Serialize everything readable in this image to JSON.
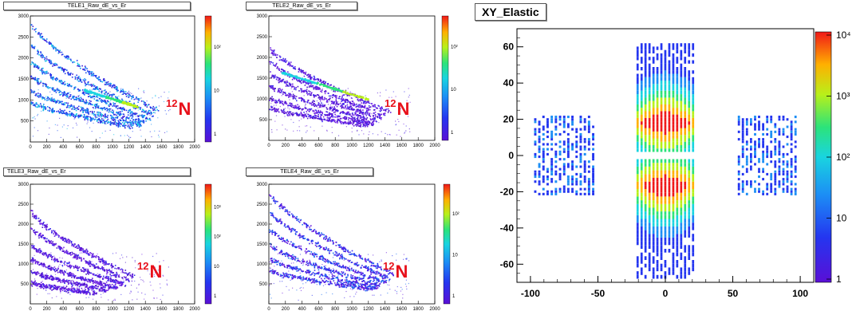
{
  "chart_data": [
    {
      "type": "heatmap",
      "title": "TELE1_Raw_dE_vs_Er",
      "xlim": [
        0,
        2000
      ],
      "ylim": [
        0,
        3000
      ],
      "xticks": [
        "0",
        "200",
        "400",
        "600",
        "800",
        "1000",
        "1200",
        "1400",
        "1600",
        "1800",
        "2000"
      ],
      "yticks": [
        "500",
        "1000",
        "1500",
        "2000",
        "2500",
        "3000"
      ],
      "zscale": "log",
      "zticks": [
        "1",
        "10",
        "10²"
      ],
      "annotation": {
        "mass": "12",
        "symbol": "N"
      },
      "bands": [
        {
          "x0": 0,
          "y0": 2850,
          "x1": 1550,
          "y1": 750
        },
        {
          "x0": 0,
          "y0": 2350,
          "x1": 1500,
          "y1": 650
        },
        {
          "x0": 0,
          "y0": 1950,
          "x1": 1450,
          "y1": 550
        },
        {
          "x0": 0,
          "y0": 1600,
          "x1": 1400,
          "y1": 480
        },
        {
          "x0": 0,
          "y0": 1250,
          "x1": 1350,
          "y1": 420
        },
        {
          "x0": 0,
          "y0": 950,
          "x1": 1250,
          "y1": 380
        }
      ],
      "ridge": {
        "x0": 650,
        "y0": 1250,
        "x1": 1300,
        "y1": 850
      }
    },
    {
      "type": "heatmap",
      "title": "TELE2_Raw_dE_vs_Er",
      "xlim": [
        0,
        2000
      ],
      "ylim": [
        0,
        3000
      ],
      "xticks": [
        "0",
        "200",
        "400",
        "600",
        "800",
        "1000",
        "1200",
        "1400",
        "1600",
        "1800",
        "2000"
      ],
      "yticks": [
        "500",
        "1000",
        "1500",
        "2000",
        "2500",
        "3000"
      ],
      "zscale": "log",
      "zticks": [
        "1",
        "10",
        "10²"
      ],
      "annotation": {
        "mass": "12",
        "symbol": "N"
      },
      "bands": [
        {
          "x0": 0,
          "y0": 2250,
          "x1": 1450,
          "y1": 700
        },
        {
          "x0": 0,
          "y0": 1950,
          "x1": 1400,
          "y1": 620
        },
        {
          "x0": 0,
          "y0": 1650,
          "x1": 1350,
          "y1": 550
        },
        {
          "x0": 0,
          "y0": 1350,
          "x1": 1300,
          "y1": 480
        },
        {
          "x0": 0,
          "y0": 1050,
          "x1": 1250,
          "y1": 420
        },
        {
          "x0": 0,
          "y0": 800,
          "x1": 1200,
          "y1": 380
        }
      ],
      "ridge": {
        "x0": 150,
        "y0": 1650,
        "x1": 1200,
        "y1": 1000
      }
    },
    {
      "type": "heatmap",
      "title": "TELE3_Raw_dE_vs_Er",
      "xlim": [
        0,
        2000
      ],
      "ylim": [
        0,
        3000
      ],
      "xticks": [
        "0",
        "200",
        "400",
        "600",
        "800",
        "1000",
        "1200",
        "1400",
        "1600",
        "1800",
        "2000"
      ],
      "yticks": [
        "500",
        "1000",
        "1500",
        "2000",
        "2500",
        "3000"
      ],
      "zscale": "log",
      "zticks": [
        "1",
        "10",
        "10²",
        "10³"
      ],
      "annotation": {
        "mass": "12",
        "symbol": "N"
      },
      "bands": [
        {
          "x0": 0,
          "y0": 2350,
          "x1": 1250,
          "y1": 700
        },
        {
          "x0": 0,
          "y0": 1950,
          "x1": 1200,
          "y1": 600
        },
        {
          "x0": 0,
          "y0": 1500,
          "x1": 1150,
          "y1": 500
        },
        {
          "x0": 0,
          "y0": 1150,
          "x1": 1050,
          "y1": 420
        },
        {
          "x0": 0,
          "y0": 850,
          "x1": 950,
          "y1": 350
        },
        {
          "x0": 0,
          "y0": 550,
          "x1": 800,
          "y1": 280
        }
      ],
      "ridge": null
    },
    {
      "type": "heatmap",
      "title": "TELE4_Raw_dE_vs_Er",
      "xlim": [
        0,
        2000
      ],
      "ylim": [
        0,
        3000
      ],
      "xticks": [
        "0",
        "200",
        "400",
        "600",
        "800",
        "1000",
        "1200",
        "1400",
        "1600",
        "1800",
        "2000"
      ],
      "yticks": [
        "500",
        "1000",
        "1500",
        "2000",
        "2500",
        "3000"
      ],
      "zscale": "log",
      "zticks": [
        "1",
        "10",
        "10²"
      ],
      "annotation": {
        "mass": "12",
        "symbol": "N"
      },
      "bands": [
        {
          "x0": 0,
          "y0": 2800,
          "x1": 1500,
          "y1": 750
        },
        {
          "x0": 0,
          "y0": 2350,
          "x1": 1450,
          "y1": 650
        },
        {
          "x0": 0,
          "y0": 1900,
          "x1": 1400,
          "y1": 560
        },
        {
          "x0": 0,
          "y0": 1500,
          "x1": 1350,
          "y1": 480
        },
        {
          "x0": 0,
          "y0": 1150,
          "x1": 1300,
          "y1": 420
        },
        {
          "x0": 0,
          "y0": 850,
          "x1": 1250,
          "y1": 380
        }
      ],
      "ridge": null
    },
    {
      "type": "heatmap",
      "title": "XY_Elastic",
      "xlim": [
        -110,
        110
      ],
      "ylim": [
        -70,
        70
      ],
      "xticks": [
        "-100",
        "-50",
        "0",
        "50",
        "100"
      ],
      "yticks": [
        "-60",
        "-40",
        "-20",
        "0",
        "20",
        "40",
        "60"
      ],
      "zscale": "log",
      "zticks": [
        "1",
        "10",
        "10²",
        "10³",
        "10⁴"
      ],
      "regions": [
        {
          "x0": -22,
          "x1": 22,
          "y0": 2,
          "y1": 62,
          "hot_y": 18
        },
        {
          "x0": -22,
          "x1": 22,
          "y0": -68,
          "y1": -2,
          "hot_y": -17
        },
        {
          "x0": -98,
          "x1": -52,
          "y0": -22,
          "y1": 22,
          "hot_y": null
        },
        {
          "x0": 53,
          "x1": 98,
          "y0": -22,
          "y1": 22,
          "hot_y": null
        }
      ]
    }
  ]
}
